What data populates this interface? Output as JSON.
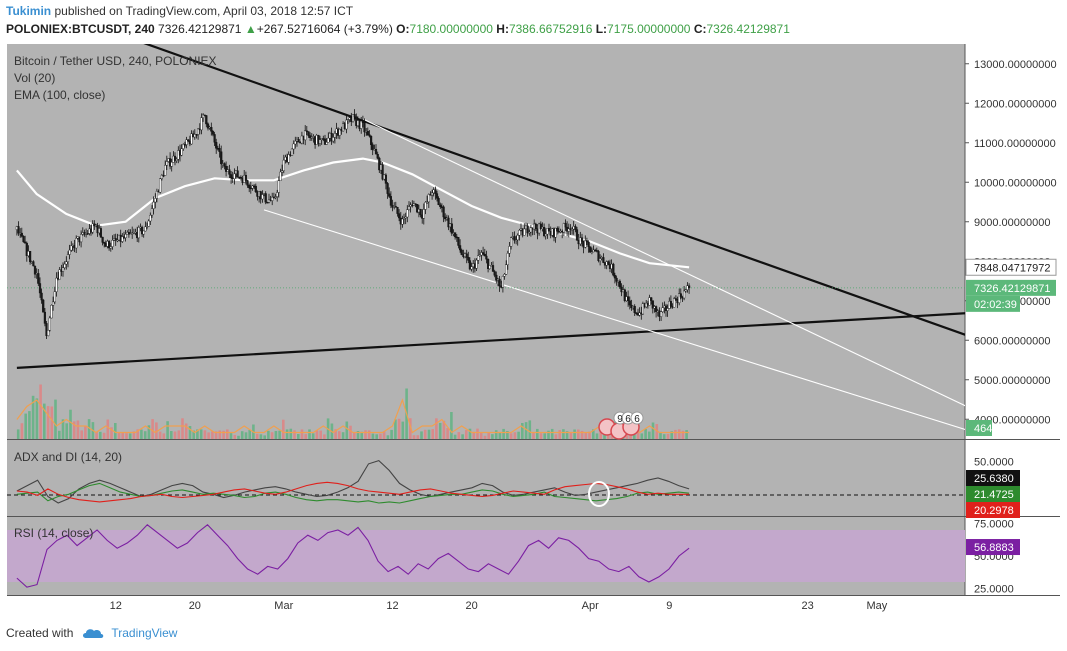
{
  "header": {
    "author": "Tukimin",
    "published_text": "published on TradingView.com, April 03, 2018 12:57 ICT",
    "symbol": "POLONIEX:BTCUSDT, 240",
    "last": "7326.42129871",
    "arrow": "▲",
    "change": "+267.52716064 (+3.79%)",
    "o_label": "O:",
    "o_value": "7180.00000000",
    "h_label": "H:",
    "h_value": "7386.66752916",
    "l_label": "L:",
    "l_value": "7175.00000000",
    "c_label": "C:",
    "c_value": "7326.42129871"
  },
  "footer": {
    "created_with": "Created with",
    "brand": "TradingView"
  },
  "colors": {
    "pane_bg": "#b3b3b3",
    "up": "#ffffff",
    "down": "#1a1a1a",
    "ema": "#ffffff",
    "adx": "#444444",
    "di_plus": "#2e8b2e",
    "di_minus": "#e0201b",
    "rsi": "#7b1fa2",
    "rsi_band": "#c3a8cc",
    "price_badge": "#5cb87a",
    "accent": "#3a8fd1"
  },
  "chart_data": [
    {
      "type": "candlestick",
      "title": "Bitcoin / Tether USD, 240, POLONIEX",
      "legend": [
        "Vol (20)",
        "EMA (100, close)"
      ],
      "y_axis_labels": [
        "13000.00000000",
        "12000.00000000",
        "11000.00000000",
        "10000.00000000",
        "9000.00000000",
        "8000.00000000",
        "7000.00000000",
        "6000.00000000",
        "5000.00000000",
        "4000.00000000"
      ],
      "ylim": [
        3500,
        13500
      ],
      "x_labels": [
        "12",
        "20",
        "Mar",
        "12",
        "20",
        "Apr",
        "9",
        "23",
        "May"
      ],
      "x_label_days": [
        11,
        19,
        28,
        39,
        47,
        59,
        67,
        81,
        88
      ],
      "price_path": [
        [
          1,
          8800
        ],
        [
          3,
          7700
        ],
        [
          4,
          6100
        ],
        [
          5,
          7600
        ],
        [
          7,
          8500
        ],
        [
          9,
          8900
        ],
        [
          10,
          8400
        ],
        [
          12,
          8600
        ],
        [
          14,
          8800
        ],
        [
          16,
          10400
        ],
        [
          18,
          10900
        ],
        [
          19,
          11200
        ],
        [
          20,
          11700
        ],
        [
          21,
          11000
        ],
        [
          22,
          10300
        ],
        [
          24,
          10100
        ],
        [
          26,
          9600
        ],
        [
          27,
          9500
        ],
        [
          28,
          10500
        ],
        [
          29,
          10900
        ],
        [
          30,
          11200
        ],
        [
          32,
          11000
        ],
        [
          34,
          11400
        ],
        [
          35,
          11600
        ],
        [
          36,
          11400
        ],
        [
          37,
          10900
        ],
        [
          38,
          10200
        ],
        [
          39,
          9400
        ],
        [
          40,
          9000
        ],
        [
          41,
          9500
        ],
        [
          42,
          9200
        ],
        [
          43,
          9800
        ],
        [
          44,
          9300
        ],
        [
          45,
          8800
        ],
        [
          46,
          8200
        ],
        [
          47,
          7800
        ],
        [
          48,
          8200
        ],
        [
          49,
          7800
        ],
        [
          50,
          7300
        ],
        [
          51,
          8500
        ],
        [
          53,
          8900
        ],
        [
          55,
          8700
        ],
        [
          57,
          8900
        ],
        [
          58,
          8500
        ],
        [
          59,
          8300
        ],
        [
          60,
          8100
        ],
        [
          61,
          7900
        ],
        [
          62,
          7400
        ],
        [
          63,
          6800
        ],
        [
          64,
          6700
        ],
        [
          65,
          7000
        ],
        [
          66,
          6600
        ],
        [
          67,
          6900
        ],
        [
          68,
          7100
        ],
        [
          69,
          7326
        ]
      ],
      "ema_100": [
        [
          1,
          10300
        ],
        [
          3,
          9700
        ],
        [
          6,
          9200
        ],
        [
          9,
          8900
        ],
        [
          12,
          9000
        ],
        [
          15,
          9600
        ],
        [
          18,
          9900
        ],
        [
          21,
          10100
        ],
        [
          24,
          10050
        ],
        [
          27,
          10050
        ],
        [
          30,
          10300
        ],
        [
          33,
          10500
        ],
        [
          36,
          10600
        ],
        [
          38,
          10500
        ],
        [
          41,
          10200
        ],
        [
          44,
          9800
        ],
        [
          47,
          9400
        ],
        [
          50,
          9100
        ],
        [
          53,
          8900
        ],
        [
          56,
          8700
        ],
        [
          59,
          8500
        ],
        [
          62,
          8200
        ],
        [
          65,
          7950
        ],
        [
          69,
          7848
        ]
      ],
      "trend_lines": [
        {
          "name": "upper-resistance",
          "from": [
            13,
            13600
          ],
          "to": [
            112,
            4800
          ]
        },
        {
          "name": "lower-support",
          "from": [
            1,
            5300
          ],
          "to": [
            112,
            6900
          ]
        },
        {
          "name": "channel-upper",
          "from": [
            36,
            11600
          ],
          "to": [
            104,
            3500
          ]
        },
        {
          "name": "channel-lower",
          "from": [
            26,
            9300
          ],
          "to": [
            100,
            3500
          ]
        }
      ],
      "volume": {
        "last_value": "464",
        "bars": [
          3,
          5,
          6,
          4,
          2,
          3,
          2,
          2,
          1,
          2,
          1,
          1,
          1,
          2,
          1,
          2,
          2,
          2,
          1,
          2,
          1,
          1,
          1,
          2,
          1,
          1,
          2,
          1,
          1,
          1,
          1,
          2,
          1,
          2,
          1,
          1,
          1,
          1,
          2,
          6,
          1,
          2,
          2,
          3,
          1,
          2,
          1,
          1,
          1,
          1,
          1,
          2,
          1,
          1,
          1,
          1,
          1,
          1,
          1,
          2,
          3,
          1,
          2,
          1,
          2,
          1,
          1,
          1,
          1
        ]
      },
      "markers": [
        "9",
        "6",
        "6"
      ],
      "ema_value": "7848.04717972",
      "price_value": "7326.42129871",
      "countdown": "02:02:39"
    },
    {
      "type": "line",
      "title": "ADX and DI (14, 20)",
      "y_axis_labels": [
        "50.0000"
      ],
      "ylim": [
        0,
        70
      ],
      "series": [
        {
          "name": "ADX",
          "values": [
            23,
            28,
            33,
            18,
            12,
            16,
            25,
            30,
            33,
            30,
            26,
            22,
            18,
            20,
            24,
            28,
            30,
            28,
            22,
            20,
            17,
            19,
            22,
            24,
            26,
            27,
            25,
            22,
            20,
            18,
            19,
            22,
            26,
            32,
            48,
            51,
            42,
            30,
            24,
            20,
            18,
            20,
            22,
            24,
            26,
            30,
            28,
            22,
            19,
            20,
            22,
            24,
            26,
            22,
            19,
            20,
            22,
            24,
            26,
            28,
            30,
            33,
            35,
            32,
            28,
            25
          ]
        },
        {
          "name": "+DI",
          "values": [
            20,
            21,
            22,
            14,
            18,
            20,
            24,
            28,
            30,
            26,
            22,
            20,
            18,
            19,
            21,
            23,
            24,
            22,
            20,
            21,
            20,
            19,
            17,
            18,
            21,
            22,
            20,
            17,
            15,
            14,
            15,
            15,
            14,
            13,
            14,
            12,
            13,
            12,
            14,
            16,
            18,
            19,
            20,
            20,
            22,
            24,
            23,
            20,
            18,
            19,
            20,
            22,
            18,
            17,
            16,
            15,
            14,
            15,
            16,
            18,
            21,
            22,
            20,
            21,
            22,
            21
          ]
        },
        {
          "name": "-DI",
          "values": [
            23,
            22,
            19,
            25,
            20,
            17,
            15,
            14,
            13,
            14,
            15,
            16,
            18,
            19,
            20,
            18,
            17,
            18,
            19,
            20,
            22,
            24,
            25,
            23,
            21,
            20,
            22,
            25,
            28,
            30,
            31,
            30,
            28,
            25,
            23,
            22,
            21,
            20,
            22,
            24,
            25,
            23,
            21,
            20,
            19,
            18,
            19,
            21,
            23,
            22,
            21,
            20,
            24,
            27,
            28,
            29,
            30,
            29,
            27,
            25,
            22,
            20,
            21,
            20,
            20,
            20
          ]
        }
      ],
      "values_shown": [
        "25.6380",
        "21.4725",
        "20.2978"
      ]
    },
    {
      "type": "line",
      "title": "RSI (14, close)",
      "y_axis_labels": [
        "75.0000",
        "50.0000",
        "25.0000"
      ],
      "ylim": [
        20,
        80
      ],
      "band": [
        30,
        70
      ],
      "series": [
        {
          "name": "RSI",
          "values": [
            33,
            26,
            28,
            55,
            62,
            66,
            58,
            64,
            70,
            62,
            56,
            60,
            66,
            74,
            68,
            62,
            56,
            60,
            68,
            74,
            66,
            58,
            48,
            40,
            36,
            42,
            40,
            48,
            60,
            66,
            62,
            68,
            70,
            66,
            72,
            62,
            46,
            38,
            42,
            36,
            44,
            40,
            48,
            52,
            46,
            40,
            38,
            44,
            40,
            36,
            46,
            58,
            62,
            56,
            64,
            62,
            56,
            48,
            46,
            40,
            38,
            42,
            34,
            30,
            34,
            40,
            50,
            56
          ]
        }
      ],
      "value_shown": "56.8883"
    }
  ]
}
